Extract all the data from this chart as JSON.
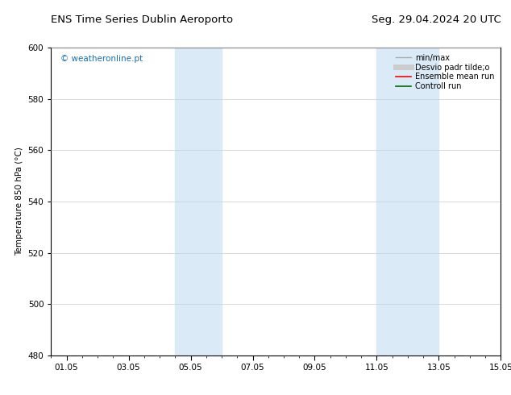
{
  "title_left": "ENS Time Series Dublin Aeroporto",
  "title_right": "Seg. 29.04.2024 20 UTC",
  "ylabel": "Temperature 850 hPa (°C)",
  "ylim": [
    480,
    600
  ],
  "yticks": [
    480,
    500,
    520,
    540,
    560,
    580,
    600
  ],
  "xlim": [
    0.0,
    14.5
  ],
  "xtick_positions": [
    0.5,
    2.5,
    4.5,
    6.5,
    8.5,
    10.5,
    12.5,
    14.5
  ],
  "xtick_labels": [
    "01.05",
    "03.05",
    "05.05",
    "07.05",
    "09.05",
    "11.05",
    "13.05",
    "15.05"
  ],
  "bg_color": "#ffffff",
  "plot_bg_color": "#ffffff",
  "shaded_bands": [
    {
      "xmin": 4.0,
      "xmax": 5.5,
      "color": "#daeaf7"
    },
    {
      "xmin": 10.5,
      "xmax": 12.5,
      "color": "#daeaf7"
    }
  ],
  "watermark_text": "© weatheronline.pt",
  "watermark_color": "#1a6faf",
  "legend_entries": [
    {
      "label": "min/max",
      "color": "#aaaaaa",
      "lw": 1.0
    },
    {
      "label": "Desvio padr tilde;o",
      "color": "#cccccc",
      "lw": 5
    },
    {
      "label": "Ensemble mean run",
      "color": "#ff0000",
      "lw": 1.2
    },
    {
      "label": "Controll run",
      "color": "#006600",
      "lw": 1.2
    }
  ],
  "grid_color": "#cccccc",
  "font_size": 7.5,
  "title_font_size": 9.5,
  "watermark_font_size": 7.5
}
